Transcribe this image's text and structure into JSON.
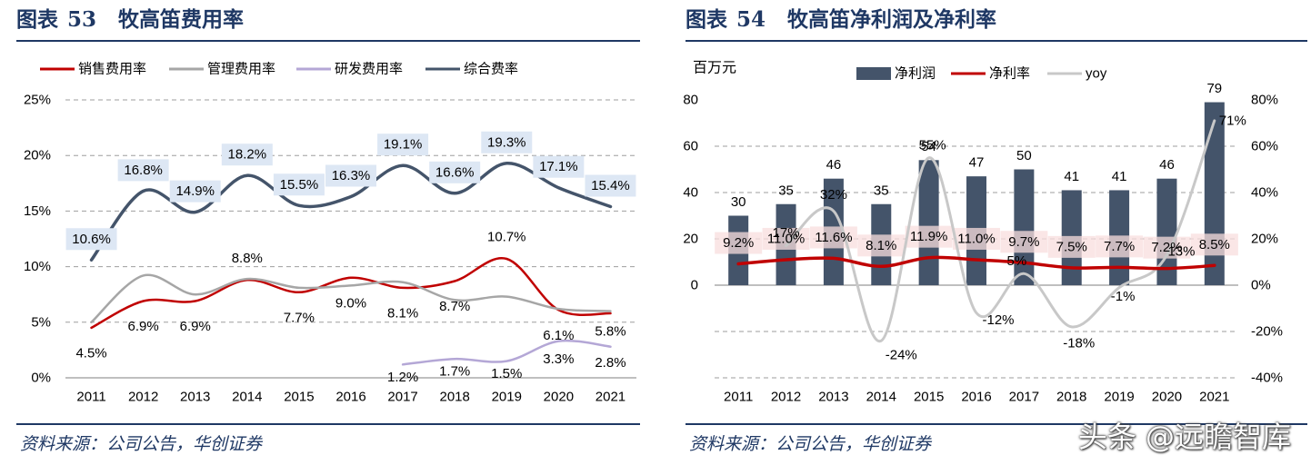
{
  "left": {
    "title_prefix": "图表",
    "title_number": "53",
    "title_text": "牧高笛费用率",
    "source": "资料来源：公司公告，华创证券",
    "chart_data": {
      "type": "line",
      "x": [
        "2011",
        "2012",
        "2013",
        "2014",
        "2015",
        "2016",
        "2017",
        "2018",
        "2019",
        "2020",
        "2021"
      ],
      "ylim": [
        0,
        25
      ],
      "yticks": [
        "0%",
        "5%",
        "10%",
        "15%",
        "20%",
        "25%"
      ],
      "grid": true,
      "legend_position": "top",
      "series": [
        {
          "name": "销售费用率",
          "color": "#c00000",
          "values": [
            4.5,
            6.9,
            6.9,
            8.8,
            7.7,
            9.0,
            8.1,
            8.7,
            10.7,
            6.1,
            5.8
          ],
          "labels": [
            "4.5%",
            "6.9%",
            "6.9%",
            "8.8%",
            "7.7%",
            "9.0%",
            "8.1%",
            "8.7%",
            "10.7%",
            "6.1%",
            "5.8%"
          ]
        },
        {
          "name": "管理费用率",
          "color": "#a6a6a6",
          "values": [
            5.0,
            9.2,
            7.5,
            8.9,
            8.1,
            8.3,
            8.6,
            7.0,
            7.3,
            6.2,
            6.0
          ],
          "labels": []
        },
        {
          "name": "研发费用率",
          "color": "#b4a7d6",
          "values": [
            null,
            null,
            null,
            null,
            null,
            null,
            1.2,
            1.7,
            1.5,
            3.3,
            2.8
          ],
          "labels": [
            "",
            "",
            "",
            "",
            "",
            "",
            "1.2%",
            "1.7%",
            "1.5%",
            "3.3%",
            "2.8%"
          ]
        },
        {
          "name": "综合费率",
          "color": "#44546a",
          "values": [
            10.6,
            16.8,
            14.9,
            18.2,
            15.5,
            16.3,
            19.1,
            16.6,
            19.3,
            17.1,
            15.4
          ],
          "labels": [
            "10.6%",
            "16.8%",
            "14.9%",
            "18.2%",
            "15.5%",
            "16.3%",
            "19.1%",
            "16.6%",
            "19.3%",
            "17.1%",
            "15.4%"
          ]
        }
      ]
    }
  },
  "right": {
    "title_prefix": "图表",
    "title_number": "54",
    "title_text": "牧高笛净利润及净利率",
    "source": "资料来源：公司公告，华创证券",
    "chart_data": {
      "type": "bar",
      "categories": [
        "2011",
        "2012",
        "2013",
        "2014",
        "2015",
        "2016",
        "2017",
        "2018",
        "2019",
        "2020",
        "2021"
      ],
      "ylabel": "百万元",
      "ylim": [
        0,
        80
      ],
      "yticks": [
        "0",
        "20",
        "40",
        "60",
        "80"
      ],
      "y2lim": [
        -40,
        80
      ],
      "y2ticks": [
        "-40%",
        "-20%",
        "0%",
        "20%",
        "40%",
        "60%",
        "80%"
      ],
      "legend_position": "top",
      "series": [
        {
          "name": "净利润",
          "axis": "left",
          "kind": "bar",
          "color": "#44546a",
          "values": [
            30,
            35,
            46,
            35,
            54,
            47,
            50,
            41,
            41,
            46,
            79
          ],
          "labels": [
            "30",
            "35",
            "46",
            "35",
            "54",
            "47",
            "50",
            "41",
            "41",
            "46",
            "79"
          ]
        },
        {
          "name": "净利率",
          "axis": "right",
          "kind": "line",
          "color": "#c00000",
          "values": [
            9.2,
            11.0,
            11.6,
            8.1,
            11.9,
            11.0,
            9.7,
            7.5,
            7.7,
            7.2,
            8.5
          ],
          "labels": [
            "9.2%",
            "11.0%",
            "11.6%",
            "8.1%",
            "11.9%",
            "11.0%",
            "9.7%",
            "7.5%",
            "7.7%",
            "7.2%",
            "8.5%"
          ]
        },
        {
          "name": "yoy",
          "axis": "right",
          "kind": "line",
          "color": "#c8c8c8",
          "values": [
            null,
            17,
            32,
            -24,
            55,
            -12,
            5,
            -18,
            -1,
            13,
            71
          ],
          "labels": [
            "",
            "17%",
            "32%",
            "-24%",
            "55%",
            "-12%",
            "5%",
            "-18%",
            "-1%",
            "13%",
            "71%"
          ]
        }
      ]
    }
  },
  "watermark": "头条 @远瞻智库",
  "colors": {
    "title": "#1f3864",
    "label_bg": "#dde7f4",
    "net_margin_label_bg": "#f8dede",
    "grid": "#9e9e9e"
  }
}
